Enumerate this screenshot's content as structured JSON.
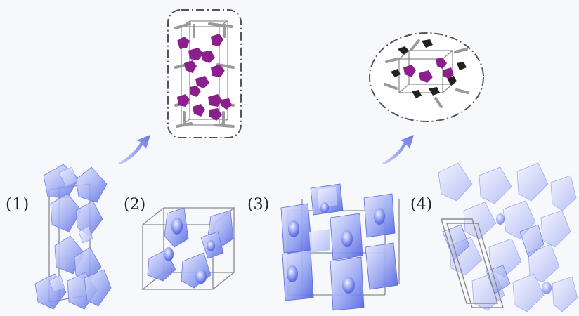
{
  "labels": {
    "p1": "(1)",
    "p2": "(2)",
    "p3": "(3)",
    "p4": "(4)"
  },
  "icons": {
    "arrow": "curved-arrow-icon",
    "inset_rect": "dashdot-rounded-rect-inset",
    "inset_ellipse": "dashdot-ellipse-inset"
  },
  "colors": {
    "polyhedra_fill": "#8f9ff0",
    "polyhedra_deep": "#4a5ee0",
    "polyhedra_light": "#e4e8fc",
    "cell_edge": "#8a8a8a",
    "molecule_purple": "#8b1f8c",
    "molecule_grey": "#9a9a9a",
    "molecule_dark": "#222222",
    "arrow": "#8a96e8",
    "inset_border": "#555555",
    "background": "#f7f8fb"
  }
}
